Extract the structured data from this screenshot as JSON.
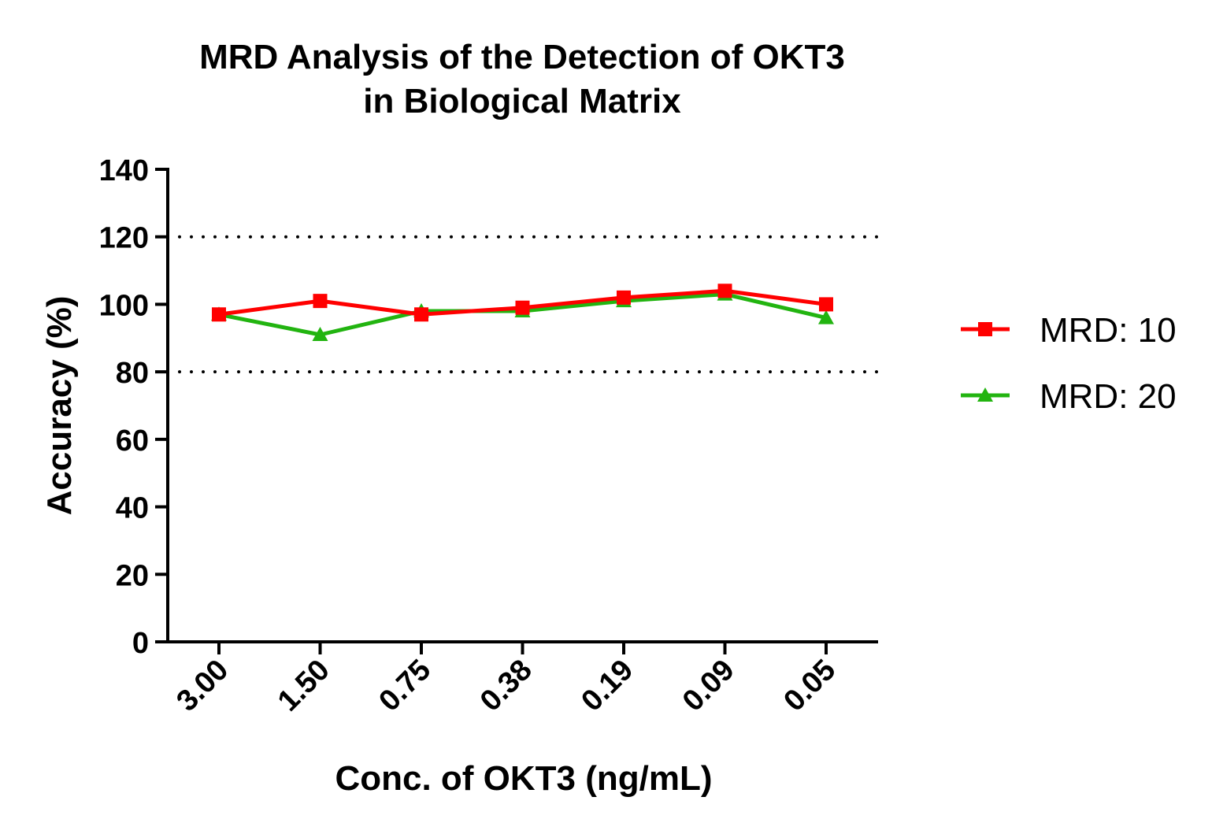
{
  "chart_data": {
    "type": "line",
    "title": [
      "MRD Analysis of the Detection of OKT3",
      "in Biological Matrix"
    ],
    "xlabel": "Conc. of OKT3 (ng/mL)",
    "ylabel": "Accuracy (%)",
    "categories": [
      "3.00",
      "1.50",
      "0.75",
      "0.38",
      "0.19",
      "0.09",
      "0.05"
    ],
    "ylim": [
      0,
      140
    ],
    "yticks": [
      "0",
      "20",
      "40",
      "60",
      "80",
      "100",
      "120",
      "140"
    ],
    "reference_lines": [
      80,
      120
    ],
    "reference_line_style": "dotted",
    "grid": false,
    "legend_position": "right",
    "series": [
      {
        "name": "MRD: 10",
        "color": "#ff0000",
        "marker": "square",
        "values": [
          97,
          101,
          97,
          99,
          102,
          104,
          100
        ]
      },
      {
        "name": "MRD: 20",
        "color": "#22b410",
        "marker": "triangle",
        "values": [
          97,
          91,
          98,
          98,
          101,
          103,
          96
        ]
      }
    ]
  }
}
